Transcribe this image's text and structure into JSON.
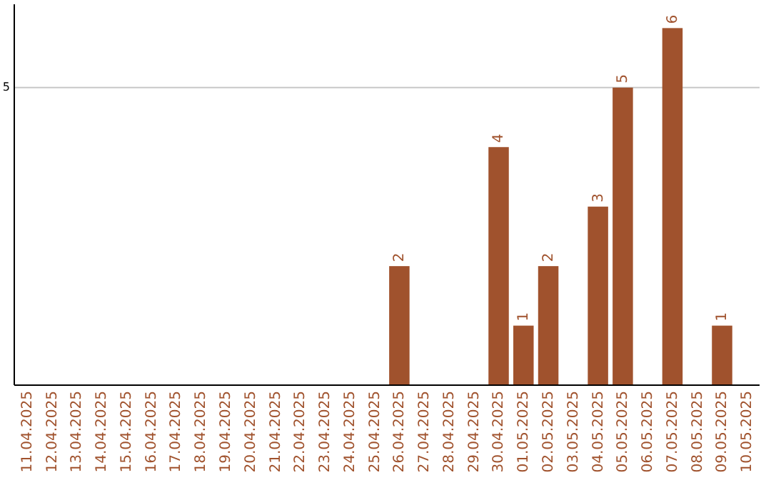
{
  "chart_data": {
    "type": "bar",
    "categories": [
      "11.04.2025",
      "12.04.2025",
      "13.04.2025",
      "14.04.2025",
      "15.04.2025",
      "16.04.2025",
      "17.04.2025",
      "18.04.2025",
      "19.04.2025",
      "20.04.2025",
      "21.04.2025",
      "22.04.2025",
      "23.04.2025",
      "24.04.2025",
      "25.04.2025",
      "26.04.2025",
      "27.04.2025",
      "28.04.2025",
      "29.04.2025",
      "30.04.2025",
      "01.05.2025",
      "02.05.2025",
      "03.05.2025",
      "04.05.2025",
      "05.05.2025",
      "06.05.2025",
      "07.05.2025",
      "08.05.2025",
      "09.05.2025",
      "10.05.2025"
    ],
    "values": [
      null,
      null,
      null,
      null,
      null,
      null,
      null,
      null,
      null,
      null,
      null,
      null,
      null,
      null,
      null,
      2,
      null,
      null,
      null,
      4,
      1,
      2,
      null,
      3,
      5,
      null,
      6,
      null,
      1,
      null
    ],
    "data_labels": true,
    "color": "#a0522d",
    "ylim": [
      0,
      6.4
    ],
    "yticks": [
      5
    ],
    "grid": "y"
  }
}
